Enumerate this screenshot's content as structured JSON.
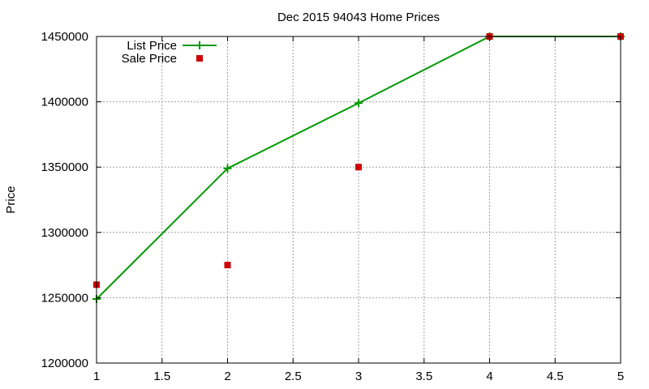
{
  "chart_data": {
    "type": "line",
    "title": "Dec 2015 94043 Home Prices",
    "xlabel": "",
    "ylabel": "Price",
    "xlim": [
      1,
      5
    ],
    "ylim": [
      1200000,
      1450000
    ],
    "x_ticks": [
      1,
      1.5,
      2,
      2.5,
      3,
      3.5,
      4,
      4.5,
      5
    ],
    "y_ticks": [
      1200000,
      1250000,
      1300000,
      1350000,
      1400000,
      1450000
    ],
    "grid": true,
    "legend_position": "top-left",
    "series": [
      {
        "name": "List Price",
        "style": "linespoints",
        "marker": "plus",
        "color": "#009900",
        "x": [
          1,
          2,
          3,
          4,
          5
        ],
        "y": [
          1249000,
          1349000,
          1399000,
          1450000,
          1450000
        ]
      },
      {
        "name": "Sale Price",
        "style": "points",
        "marker": "square",
        "color": "#cc0000",
        "x": [
          1,
          2,
          3,
          4,
          5
        ],
        "y": [
          1260000,
          1275000,
          1350000,
          1450000,
          1450000
        ]
      }
    ]
  }
}
